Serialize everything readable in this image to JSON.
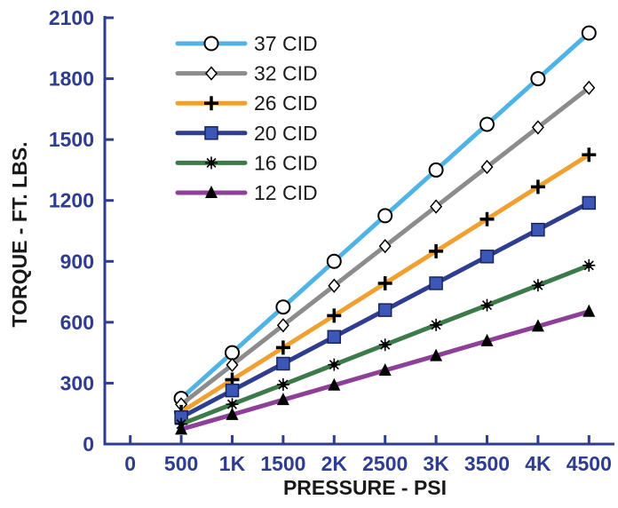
{
  "chart_data": {
    "type": "line",
    "xlabel": "PRESSURE - PSI",
    "ylabel": "TORQUE - FT. LBS.",
    "xlim": [
      -250,
      4750
    ],
    "ylim": [
      0,
      2100
    ],
    "grid": false,
    "legend_position": "top-left",
    "x_ticks": [
      0,
      500,
      1000,
      1500,
      2000,
      2500,
      3000,
      3500,
      4000,
      4500
    ],
    "x_tick_labels": [
      "0",
      "500",
      "1K",
      "1500",
      "2K",
      "2500",
      "3K",
      "3500",
      "4K",
      "4500"
    ],
    "y_ticks": [
      0,
      300,
      600,
      900,
      1200,
      1500,
      1800,
      2100
    ],
    "y_tick_labels": [
      "0",
      "300",
      "600",
      "900",
      "1200",
      "1500",
      "1800",
      "2100"
    ],
    "x": [
      500,
      1000,
      1500,
      2000,
      2500,
      3000,
      3500,
      4000,
      4500
    ],
    "series": [
      {
        "name": "37 CID",
        "color": "#4fb3e6",
        "marker": "circle-open",
        "values": [
          225,
          450,
          675,
          900,
          1125,
          1350,
          1575,
          1800,
          2025
        ]
      },
      {
        "name": "32 CID",
        "color": "#8c8c8c",
        "marker": "diamond-open",
        "values": [
          195,
          390,
          585,
          780,
          975,
          1170,
          1365,
          1560,
          1755
        ]
      },
      {
        "name": "26 CID",
        "color": "#f0a030",
        "marker": "plus",
        "values": [
          158,
          317,
          475,
          633,
          792,
          950,
          1108,
          1267,
          1425
        ]
      },
      {
        "name": "20 CID",
        "color": "#2e3d8f",
        "marker": "square-filled",
        "values": [
          132,
          264,
          396,
          528,
          660,
          792,
          924,
          1056,
          1188
        ]
      },
      {
        "name": "16 CID",
        "color": "#3c7a4a",
        "marker": "star",
        "values": [
          98,
          196,
          293,
          391,
          489,
          587,
          684,
          782,
          880
        ]
      },
      {
        "name": "12 CID",
        "color": "#8e3f98",
        "marker": "triangle-filled",
        "values": [
          73,
          145,
          218,
          290,
          363,
          435,
          508,
          580,
          653
        ]
      }
    ]
  }
}
